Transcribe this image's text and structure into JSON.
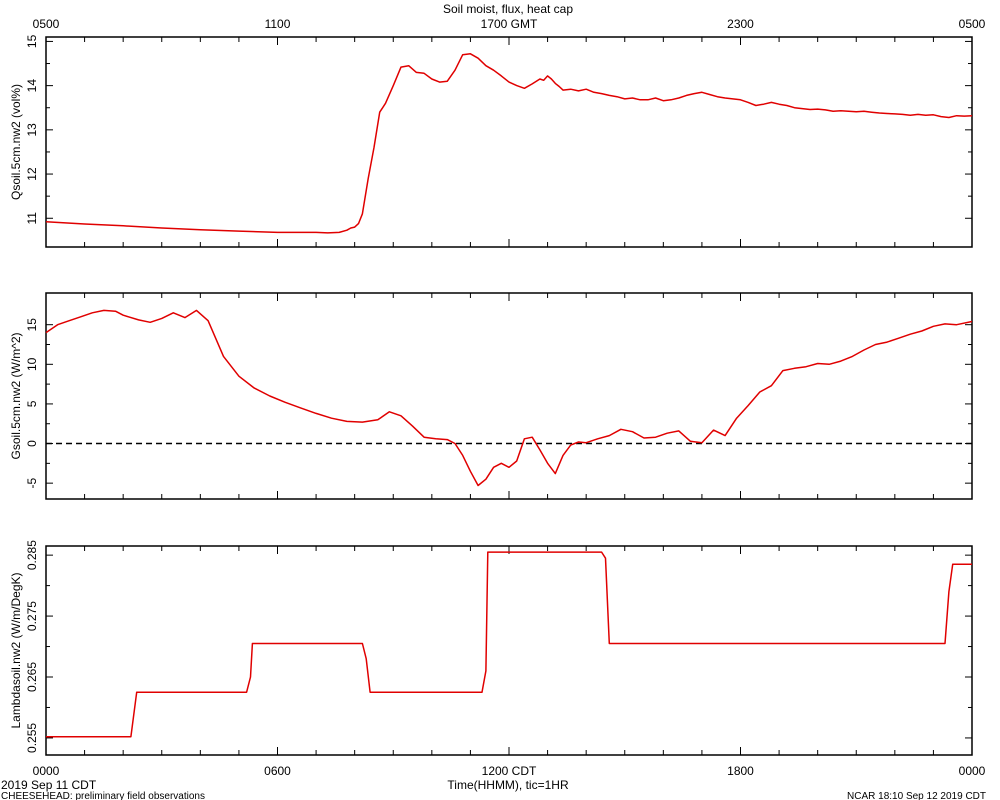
{
  "chart_data": {
    "type": "line",
    "title": "Soil moist, flux, heat cap",
    "top_axis_ticks": [
      "0500",
      "1100",
      "1700 GMT",
      "2300",
      "0500"
    ],
    "bottom_axis_ticks": [
      "0000",
      "0600",
      "1200 CDT",
      "1800",
      "0000"
    ],
    "xlabel": "Time(HHMM), tic=1HR",
    "xlim": [
      0,
      24
    ],
    "line_color": "#e00000",
    "footer_left_date": "2019 Sep 11 CDT",
    "footer_left": "CHEESEHEAD: preliminary field observations",
    "footer_right": "NCAR 18:10 Sep 12 2019 CDT",
    "panels": [
      {
        "ylabel": "Qsoil.5cm.nw2 (vol%)",
        "ylim": [
          10.35,
          15.1
        ],
        "yticks": [
          11,
          12,
          13,
          14,
          15
        ],
        "zero_line": false,
        "x": [
          0,
          1,
          2,
          3,
          4,
          5,
          6,
          7,
          7.3,
          7.6,
          7.8,
          7.9,
          8.0,
          8.1,
          8.2,
          8.35,
          8.5,
          8.65,
          8.8,
          9.0,
          9.2,
          9.4,
          9.6,
          9.8,
          10.0,
          10.2,
          10.4,
          10.6,
          10.8,
          11.0,
          11.2,
          11.4,
          11.6,
          11.8,
          12.0,
          12.2,
          12.4,
          12.6,
          12.8,
          12.9,
          13.0,
          13.1,
          13.2,
          13.3,
          13.4,
          13.6,
          13.8,
          14.0,
          14.2,
          14.4,
          14.6,
          14.8,
          15.0,
          15.2,
          15.4,
          15.6,
          15.8,
          16.0,
          16.2,
          16.4,
          16.6,
          16.8,
          17.0,
          17.2,
          17.4,
          17.6,
          17.8,
          18.0,
          18.2,
          18.4,
          18.6,
          18.8,
          19.0,
          19.2,
          19.4,
          19.6,
          19.8,
          20.0,
          20.2,
          20.4,
          20.6,
          20.8,
          21.0,
          21.2,
          21.4,
          21.6,
          21.8,
          22.0,
          22.2,
          22.4,
          22.6,
          22.8,
          23.0,
          23.2,
          23.4,
          23.6,
          23.8,
          24.0
        ],
        "values": [
          10.92,
          10.87,
          10.83,
          10.78,
          10.74,
          10.71,
          10.68,
          10.68,
          10.67,
          10.68,
          10.73,
          10.78,
          10.8,
          10.88,
          11.1,
          11.9,
          12.6,
          13.4,
          13.6,
          14.0,
          14.42,
          14.45,
          14.3,
          14.28,
          14.15,
          14.08,
          14.1,
          14.35,
          14.7,
          14.72,
          14.62,
          14.45,
          14.35,
          14.22,
          14.08,
          14.0,
          13.94,
          14.04,
          14.15,
          14.12,
          14.22,
          14.15,
          14.05,
          13.98,
          13.9,
          13.92,
          13.88,
          13.92,
          13.85,
          13.82,
          13.78,
          13.75,
          13.7,
          13.72,
          13.68,
          13.68,
          13.72,
          13.66,
          13.68,
          13.72,
          13.78,
          13.82,
          13.85,
          13.8,
          13.75,
          13.72,
          13.7,
          13.68,
          13.62,
          13.55,
          13.58,
          13.62,
          13.58,
          13.55,
          13.5,
          13.48,
          13.46,
          13.47,
          13.45,
          13.42,
          13.43,
          13.42,
          13.41,
          13.42,
          13.4,
          13.38,
          13.37,
          13.36,
          13.35,
          13.33,
          13.35,
          13.33,
          13.34,
          13.3,
          13.28,
          13.32,
          13.31,
          13.32
        ]
      },
      {
        "ylabel": "Gsoil.5cm.nw2 (W/m^2)",
        "ylim": [
          -7,
          19
        ],
        "yticks": [
          -5,
          0,
          5,
          10,
          15
        ],
        "zero_line": true,
        "x": [
          0,
          0.3,
          0.6,
          0.9,
          1.2,
          1.5,
          1.8,
          2.0,
          2.4,
          2.7,
          3.0,
          3.3,
          3.6,
          3.9,
          4.2,
          4.6,
          5.0,
          5.4,
          5.8,
          6.2,
          6.6,
          7.0,
          7.4,
          7.8,
          8.2,
          8.6,
          8.9,
          9.2,
          9.5,
          9.8,
          10.1,
          10.4,
          10.6,
          10.8,
          11.0,
          11.2,
          11.4,
          11.6,
          11.8,
          12.0,
          12.2,
          12.4,
          12.6,
          12.8,
          13.0,
          13.2,
          13.4,
          13.6,
          13.8,
          14.0,
          14.3,
          14.6,
          14.9,
          15.2,
          15.5,
          15.8,
          16.1,
          16.4,
          16.7,
          17.0,
          17.3,
          17.6,
          17.9,
          18.2,
          18.5,
          18.8,
          19.1,
          19.4,
          19.7,
          20.0,
          20.3,
          20.6,
          20.9,
          21.2,
          21.5,
          21.8,
          22.1,
          22.4,
          22.7,
          23.0,
          23.3,
          23.6,
          24.0
        ],
        "values": [
          14,
          15,
          15.5,
          16,
          16.5,
          16.8,
          16.7,
          16.2,
          15.6,
          15.3,
          15.8,
          16.5,
          15.9,
          16.8,
          15.5,
          11,
          8.5,
          7,
          6,
          5.2,
          4.5,
          3.8,
          3.2,
          2.8,
          2.7,
          3.0,
          4.0,
          3.5,
          2.2,
          0.8,
          0.6,
          0.5,
          0,
          -1.5,
          -3.5,
          -5.3,
          -4.5,
          -3.0,
          -2.5,
          -3.0,
          -2.2,
          0.6,
          0.8,
          -0.8,
          -2.5,
          -3.8,
          -1.5,
          -0.2,
          0.2,
          0.1,
          0.6,
          1.0,
          1.8,
          1.5,
          0.7,
          0.8,
          1.3,
          1.6,
          0.3,
          0.1,
          1.7,
          1.0,
          3.2,
          4.8,
          6.5,
          7.3,
          9.2,
          9.5,
          9.7,
          10.1,
          10,
          10.4,
          11,
          11.8,
          12.5,
          12.8,
          13.3,
          13.8,
          14.2,
          14.8,
          15.1,
          15.0,
          15.4
        ]
      },
      {
        "ylabel": "Lambdasoil.nw2 (W/m/DegK)",
        "ylim": [
          0.2522,
          0.2865
        ],
        "yticks": [
          0.255,
          0.265,
          0.275,
          0.285
        ],
        "zero_line": false,
        "x": [
          0,
          2.2,
          2.35,
          5.2,
          5.3,
          5.35,
          8.2,
          8.3,
          8.4,
          11.3,
          11.4,
          11.45,
          14.4,
          14.5,
          14.6,
          23.3,
          23.4,
          23.5,
          24.0
        ],
        "values": [
          0.2552,
          0.2552,
          0.2625,
          0.2625,
          0.265,
          0.2705,
          0.2705,
          0.268,
          0.2625,
          0.2625,
          0.266,
          0.2855,
          0.2855,
          0.2845,
          0.2705,
          0.2705,
          0.279,
          0.2835,
          0.2835
        ]
      }
    ]
  }
}
